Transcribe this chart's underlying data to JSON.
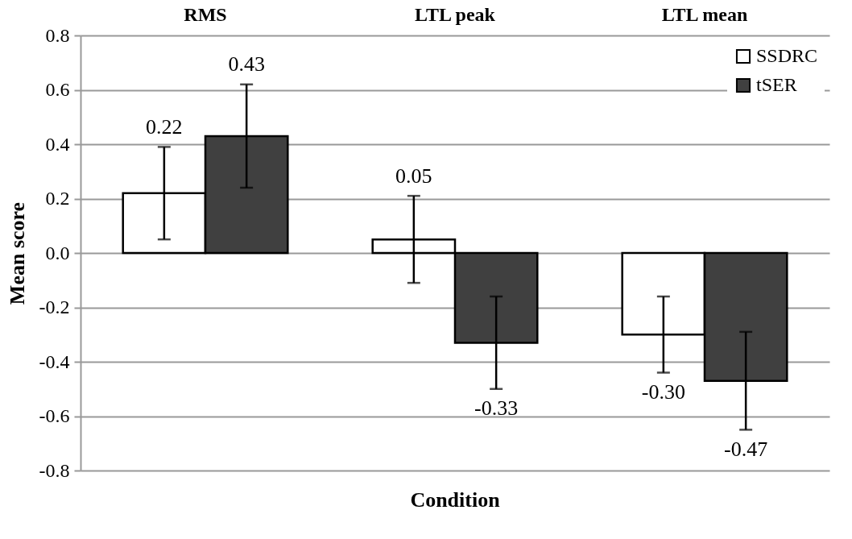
{
  "chart_data": {
    "type": "bar",
    "xlabel": "Condition",
    "ylabel": "Mean score",
    "categories": [
      "RMS",
      "LTL peak",
      "LTL mean"
    ],
    "series": [
      {
        "name": "SSDRC",
        "color": "#ffffff",
        "values": [
          0.22,
          0.05,
          -0.3
        ],
        "errors": [
          0.17,
          0.16,
          0.14
        ],
        "value_labels": [
          "0.22",
          "0.05",
          "-0.30"
        ]
      },
      {
        "name": "tSER",
        "color": "#404040",
        "values": [
          0.43,
          -0.33,
          -0.47
        ],
        "errors": [
          0.19,
          0.17,
          0.18
        ],
        "value_labels": [
          "0.43",
          "-0.33",
          "-0.47"
        ]
      }
    ],
    "ylim": [
      -0.8,
      0.8
    ],
    "yticks": [
      -0.8,
      -0.6,
      -0.4,
      -0.2,
      {
        "value": 0,
        "label": "0.0"
      },
      0.2,
      0.4,
      0.6,
      0.8
    ],
    "grid": "y",
    "legend": "top right"
  }
}
